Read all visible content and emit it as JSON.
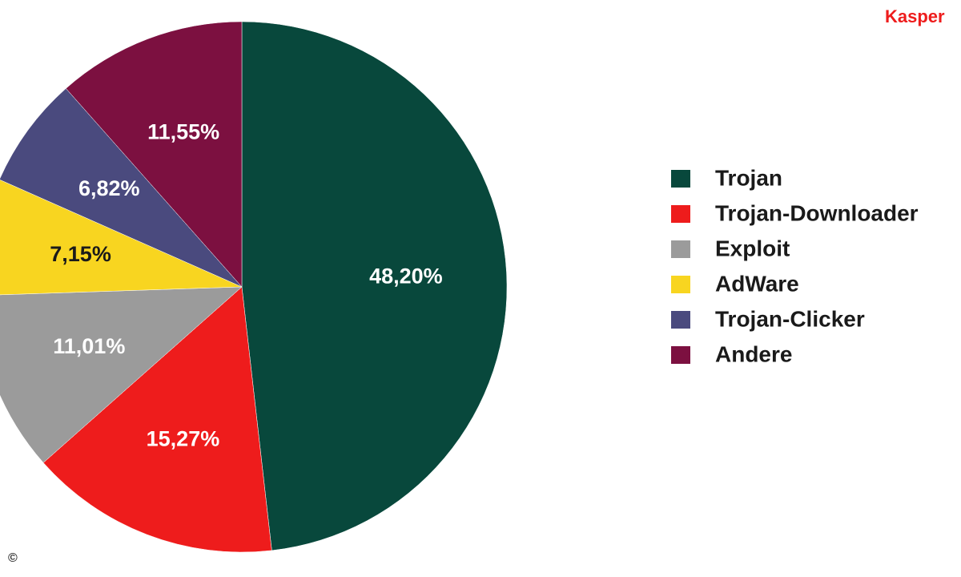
{
  "chart_data": {
    "type": "pie",
    "source": "Kasper",
    "copyright": "©",
    "categories": [
      "Trojan",
      "Trojan-Downloader",
      "Exploit",
      "AdWare",
      "Trojan-Clicker",
      "Andere"
    ],
    "values": [
      48.2,
      15.27,
      11.01,
      7.15,
      6.82,
      11.55
    ],
    "value_labels": [
      "48,20%",
      "15,27%",
      "11,01%",
      "7,15%",
      "6,82%",
      "11,55%"
    ],
    "colors": [
      "#08483c",
      "#ee1c1c",
      "#9b9b9b",
      "#f8d520",
      "#4a4a7e",
      "#7c1040"
    ],
    "label_colors": [
      "#ffffff",
      "#ffffff",
      "#ffffff",
      "#1a1a1a",
      "#ffffff",
      "#ffffff"
    ],
    "legend": "right"
  }
}
